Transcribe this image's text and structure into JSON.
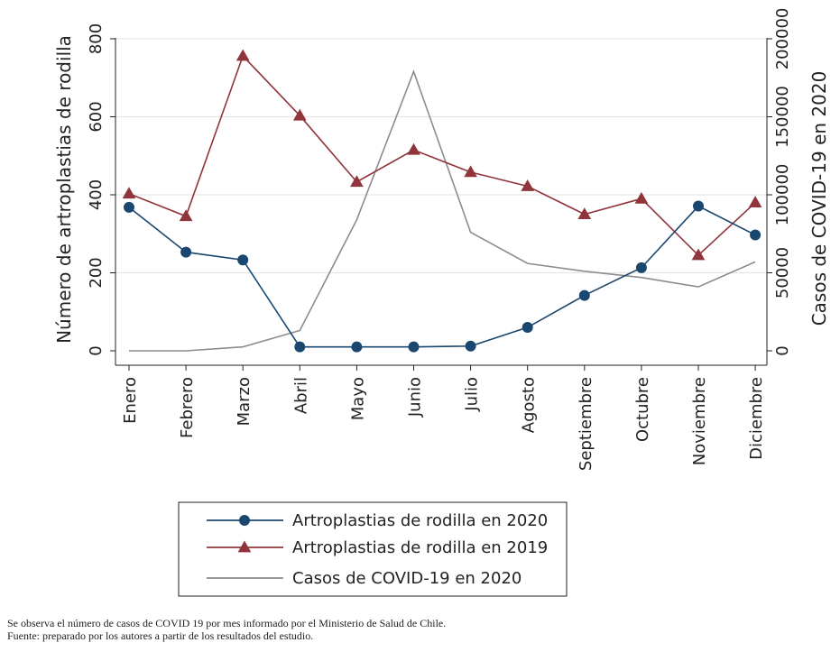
{
  "chart_data": {
    "type": "line",
    "categories": [
      "Enero",
      "Febrero",
      "Marzo",
      "Abril",
      "Mayo",
      "Junio",
      "Julio",
      "Agosto",
      "Septiembre",
      "Octubre",
      "Noviembre",
      "Diciembre"
    ],
    "ylabel_left": "Número de artroplastias de rodilla",
    "ylabel_right": "Casos de COVID-19 en 2020",
    "ylim_left": [
      0,
      800
    ],
    "ylim_right": [
      0,
      200000
    ],
    "yticks_left": [
      "0",
      "200",
      "400",
      "600",
      "800"
    ],
    "yticks_right": [
      "0",
      "50000",
      "100000",
      "150000",
      "200000"
    ],
    "grid": true,
    "legend_position": "bottom",
    "series": [
      {
        "name": "Artroplastias de rodilla en 2020",
        "axis": "left",
        "marker": "circle",
        "color": "#1a476f",
        "values": [
          368,
          253,
          233,
          10,
          10,
          10,
          12,
          60,
          142,
          213,
          371,
          297
        ]
      },
      {
        "name": "Artroplastias de rodilla en 2019",
        "axis": "left",
        "marker": "triangle",
        "color": "#90353b",
        "values": [
          403,
          345,
          756,
          603,
          433,
          515,
          458,
          422,
          350,
          390,
          245,
          380
        ]
      },
      {
        "name": "Casos de COVID-19 en 2020",
        "axis": "right",
        "marker": "none",
        "color": "#8c8c8c",
        "values": [
          0,
          0,
          2500,
          13000,
          84000,
          179000,
          76000,
          56000,
          51000,
          47000,
          41000,
          57000
        ]
      }
    ]
  },
  "notes": {
    "line1": "Se observa el número de casos de COVID 19 por mes informado por el Ministerio de Salud de Chile.",
    "line2": "Fuente: preparado por los autores a partir de los resultados del estudio."
  }
}
